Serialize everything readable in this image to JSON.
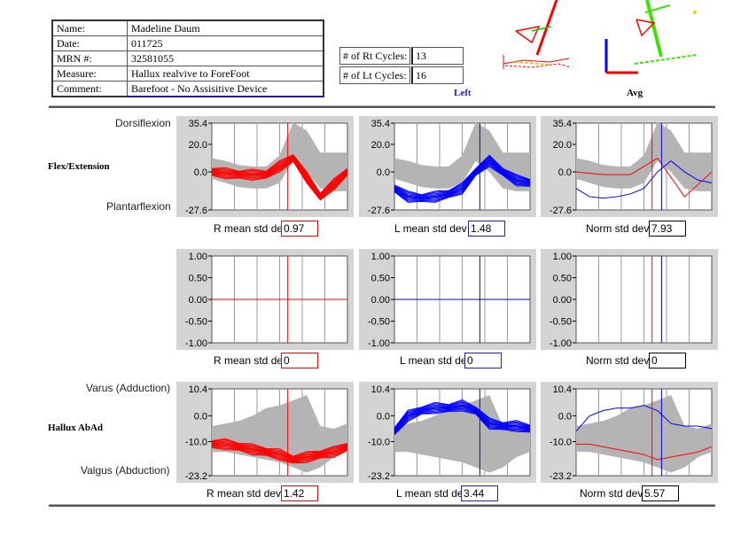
{
  "patient": {
    "rows": [
      {
        "label": "Name:",
        "value": "Madeline Daum"
      },
      {
        "label": "Date:",
        "value": "011725"
      },
      {
        "label": "MRN #:",
        "value": "32581055"
      },
      {
        "label": "Measure:",
        "value": "Hallux realvive to ForeFoot"
      },
      {
        "label": "Comment:",
        "value": "Barefoot - No Assisitive Device"
      }
    ]
  },
  "cycles": {
    "rt_label": "# of Rt Cycles:",
    "rt_value": "13",
    "lt_label": "# of Lt Cycles:",
    "lt_value": "16"
  },
  "views": {
    "left_label": "Left",
    "avg_label": "Avg"
  },
  "colors": {
    "right": "#ff0000",
    "left": "#0000ff",
    "norm_band": "#b4b4b4",
    "panel_bg": "#d4d4d4"
  },
  "rows": [
    {
      "title": "Flex/Extension",
      "top_label": "Dorsiflexion",
      "bottom_label": "Plantarflexion",
      "std": [
        {
          "label": "R mean std dev",
          "value": "0.97"
        },
        {
          "label": "L mean std dev",
          "value": "1.48"
        },
        {
          "label": "Norm std dev",
          "value": "7.93"
        }
      ]
    },
    {
      "title": "",
      "top_label": "",
      "bottom_label": "",
      "std": [
        {
          "label": "R mean std dev",
          "value": "0"
        },
        {
          "label": "L mean std dev",
          "value": "0"
        },
        {
          "label": "Norm std dev",
          "value": "0"
        }
      ]
    },
    {
      "title": "Hallux AbAd",
      "top_label": "Varus (Adduction)",
      "bottom_label": "Valgus (Abduction)",
      "std": [
        {
          "label": "R mean std dev",
          "value": "1.42"
        },
        {
          "label": "L mean std dev",
          "value": "3.44"
        },
        {
          "label": "Norm std dev",
          "value": "5.57"
        }
      ]
    }
  ],
  "chart_data": [
    {
      "type": "line",
      "row": 0,
      "ylim": [
        -27.6,
        35.4
      ],
      "yticks": [
        "35.4",
        "20.0",
        "0.0",
        "-27.6"
      ],
      "ytick_values": [
        35.4,
        20.0,
        0.0,
        -27.6
      ],
      "x": [
        0,
        10,
        20,
        30,
        40,
        50,
        60,
        70,
        80,
        90,
        100
      ],
      "norm_band": {
        "lower": [
          -5,
          -8,
          -11,
          -12,
          -12,
          -8,
          8,
          0,
          -12,
          -14,
          -14
        ],
        "upper": [
          10,
          8,
          5,
          4,
          4,
          12,
          36,
          30,
          14,
          14,
          14
        ]
      },
      "norm_mean": [
        3,
        0,
        -3,
        -4,
        -4,
        2,
        22,
        14,
        1,
        0,
        0
      ],
      "panels": [
        {
          "series": "right",
          "mean": [
            0,
            -1,
            -2,
            -2,
            -2,
            4,
            10,
            -4,
            -18,
            -9,
            0
          ],
          "toe_off": 56
        },
        {
          "series": "left",
          "mean": [
            -12,
            -18,
            -19,
            -18,
            -16,
            -12,
            0,
            8,
            0,
            -6,
            -8
          ],
          "toe_off": 63
        },
        {
          "series": "norm",
          "lines": [
            {
              "color": "right",
              "values": [
                0,
                -1,
                -2,
                -2,
                -2,
                4,
                10,
                -4,
                -18,
                -9,
                0
              ]
            },
            {
              "color": "left",
              "values": [
                -12,
                -18,
                -19,
                -18,
                -16,
                -12,
                0,
                8,
                0,
                -6,
                -8
              ]
            }
          ],
          "toe_off": [
            56,
            63
          ]
        }
      ]
    },
    {
      "type": "line",
      "row": 1,
      "ylim": [
        -1.0,
        1.0
      ],
      "yticks": [
        "1.00",
        "0.50",
        "0.00",
        "-0.50",
        "-1.00"
      ],
      "ytick_values": [
        1.0,
        0.5,
        0.0,
        -0.5,
        -1.0
      ],
      "x": [
        0,
        100
      ],
      "panels": [
        {
          "series": "right",
          "mean": [
            0,
            0
          ],
          "toe_off": 56
        },
        {
          "series": "left",
          "mean": [
            0,
            0
          ],
          "toe_off": 63
        },
        {
          "series": "norm",
          "lines": [],
          "toe_off": [
            56,
            63
          ]
        }
      ]
    },
    {
      "type": "line",
      "row": 2,
      "ylim": [
        -23.2,
        10.4
      ],
      "yticks": [
        "10.4",
        "0.0",
        "-10.0",
        "-23.2"
      ],
      "ytick_values": [
        10.4,
        0.0,
        -10.0,
        -23.2
      ],
      "x": [
        0,
        10,
        20,
        30,
        40,
        50,
        60,
        70,
        80,
        90,
        100
      ],
      "norm_band": {
        "lower": [
          -14,
          -14,
          -15,
          -16,
          -17,
          -18,
          -20,
          -22,
          -20,
          -16,
          -14
        ],
        "upper": [
          -4,
          -3,
          -2,
          0,
          3,
          4,
          6,
          8,
          -4,
          -5,
          -3
        ]
      },
      "norm_mean": [
        -9,
        -9,
        -9,
        -8,
        -7,
        -7,
        -7,
        -7,
        -12,
        -11,
        -9
      ],
      "panels": [
        {
          "series": "right",
          "mean": [
            -11,
            -11,
            -12,
            -13,
            -14,
            -15,
            -17,
            -16,
            -15,
            -14,
            -12
          ],
          "toe_off": 56
        },
        {
          "series": "left",
          "mean": [
            -6,
            0,
            2,
            3,
            3,
            4,
            2,
            -3,
            -4,
            -4,
            -5
          ],
          "toe_off": 63
        },
        {
          "series": "norm",
          "lines": [
            {
              "color": "right",
              "values": [
                -11,
                -11,
                -12,
                -13,
                -14,
                -15,
                -17,
                -16,
                -15,
                -14,
                -12
              ]
            },
            {
              "color": "left",
              "values": [
                -6,
                0,
                2,
                3,
                3,
                4,
                2,
                -3,
                -4,
                -4,
                -5
              ]
            }
          ],
          "toe_off": [
            56,
            63
          ]
        }
      ]
    }
  ]
}
